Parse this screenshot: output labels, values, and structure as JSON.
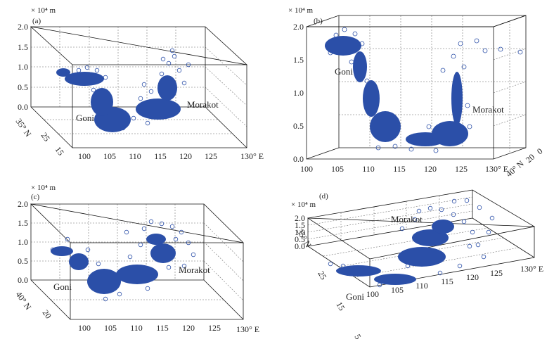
{
  "chart_data": [
    {
      "panel_label": "(a)",
      "type": "scatter",
      "z_unit": "× 10⁴ m",
      "z_ticks": [
        "0.0",
        "0.5",
        "1.0",
        "1.5",
        "2.0"
      ],
      "lon_ticks": [
        "100",
        "105",
        "110",
        "115",
        "120",
        "125",
        "130° E"
      ],
      "lat_ticks": [
        "35° N",
        "25",
        "15"
      ],
      "annotations": [
        "Goni",
        "Morakot"
      ],
      "series": [
        {
          "name": "Goni",
          "points": [
            [
              104,
              28,
              1.0
            ],
            [
              105,
              27,
              0.9
            ],
            [
              106,
              26,
              0.7
            ],
            [
              107,
              25,
              0.5
            ],
            [
              108,
              24,
              0.3
            ],
            [
              109,
              23,
              0.2
            ],
            [
              107,
              24,
              0.8
            ],
            [
              106,
              27,
              1.1
            ],
            [
              105,
              28,
              1.2
            ],
            [
              108,
              22,
              0.1
            ]
          ]
        },
        {
          "name": "Morakot",
          "points": [
            [
              116,
              25,
              0.3
            ],
            [
              118,
              25,
              0.5
            ],
            [
              120,
              24,
              0.6
            ],
            [
              121,
              23,
              0.8
            ],
            [
              122,
              24,
              1.0
            ],
            [
              123,
              25,
              1.1
            ],
            [
              124,
              25,
              1.3
            ],
            [
              119,
              23,
              0.3
            ],
            [
              121,
              25,
              0.9
            ],
            [
              123,
              23,
              1.2
            ]
          ]
        }
      ]
    },
    {
      "panel_label": "(b)",
      "type": "scatter",
      "z_unit": "× 10⁴ m",
      "z_ticks": [
        "0.0",
        "0.5",
        "1.0",
        "1.5",
        "2.0"
      ],
      "lon_ticks": [
        "100",
        "105",
        "110",
        "115",
        "120",
        "125",
        "130° E"
      ],
      "lat_ticks": [
        "40° N",
        "20",
        "0"
      ],
      "annotations": [
        "Goni",
        "Morakot"
      ],
      "series": [
        {
          "name": "Goni",
          "points": [
            [
              104,
              28,
              1.8
            ],
            [
              105,
              27,
              1.7
            ],
            [
              106,
              26,
              1.6
            ],
            [
              107,
              25,
              1.2
            ],
            [
              108,
              24,
              0.9
            ],
            [
              109,
              23,
              0.6
            ],
            [
              110,
              22,
              0.4
            ],
            [
              111,
              22,
              0.3
            ],
            [
              112,
              22,
              0.2
            ],
            [
              106,
              28,
              1.9
            ]
          ]
        },
        {
          "name": "Morakot",
          "points": [
            [
              119,
              24,
              0.2
            ],
            [
              120,
              24,
              0.3
            ],
            [
              121,
              23,
              0.5
            ],
            [
              122,
              24,
              0.8
            ],
            [
              123,
              25,
              1.1
            ],
            [
              124,
              25,
              1.4
            ],
            [
              125,
              26,
              1.6
            ],
            [
              123,
              23,
              0.9
            ],
            [
              120,
              22,
              0.2
            ],
            [
              126,
              26,
              1.3
            ]
          ]
        }
      ]
    },
    {
      "panel_label": "(c)",
      "type": "scatter",
      "z_unit": "× 10⁴ m",
      "z_ticks": [
        "0.0",
        "0.5",
        "1.0",
        "1.5",
        "2.0"
      ],
      "lon_ticks": [
        "100",
        "105",
        "110",
        "115",
        "120",
        "125",
        "130° E"
      ],
      "lat_ticks": [
        "40° N",
        "20"
      ],
      "annotations": [
        "Goni",
        "Morakot"
      ],
      "series": [
        {
          "name": "Goni",
          "points": [
            [
              104,
              28,
              0.8
            ],
            [
              105,
              27,
              0.7
            ],
            [
              106,
              26,
              0.6
            ],
            [
              107,
              25,
              0.5
            ],
            [
              108,
              24,
              0.4
            ],
            [
              109,
              23,
              0.3
            ],
            [
              110,
              22,
              0.2
            ],
            [
              106,
              27,
              0.9
            ]
          ]
        },
        {
          "name": "Morakot",
          "points": [
            [
              114,
              24,
              0.5
            ],
            [
              116,
              25,
              0.7
            ],
            [
              118,
              25,
              0.9
            ],
            [
              120,
              26,
              1.1
            ],
            [
              122,
              26,
              1.3
            ],
            [
              124,
              25,
              1.4
            ],
            [
              121,
              24,
              1.0
            ],
            [
              119,
              23,
              0.6
            ]
          ]
        }
      ]
    },
    {
      "panel_label": "(d)",
      "type": "scatter",
      "z_unit": "× 10⁴ m",
      "z_ticks": [
        "0.0",
        "0.5",
        "1.0",
        "1.5",
        "2.0"
      ],
      "lon_ticks": [
        "100",
        "105",
        "110",
        "115",
        "120",
        "125",
        "130° E"
      ],
      "lat_ticks": [
        "35° N",
        "25",
        "15",
        "5"
      ],
      "annotations": [
        "Goni",
        "Morakot"
      ],
      "series": [
        {
          "name": "Goni",
          "points": [
            [
              104,
              28,
              0.3
            ],
            [
              105,
              27,
              0.3
            ],
            [
              106,
              26,
              0.3
            ],
            [
              107,
              25,
              0.3
            ],
            [
              108,
              24,
              0.3
            ],
            [
              109,
              23,
              0.3
            ],
            [
              110,
              22,
              0.3
            ]
          ]
        },
        {
          "name": "Morakot",
          "points": [
            [
              115,
              25,
              0.5
            ],
            [
              117,
              26,
              0.8
            ],
            [
              119,
              27,
              1.0
            ],
            [
              121,
              27,
              1.3
            ],
            [
              123,
              26,
              1.5
            ],
            [
              125,
              25,
              1.7
            ],
            [
              122,
              24,
              1.2
            ],
            [
              118,
              24,
              0.7
            ]
          ]
        }
      ]
    }
  ]
}
